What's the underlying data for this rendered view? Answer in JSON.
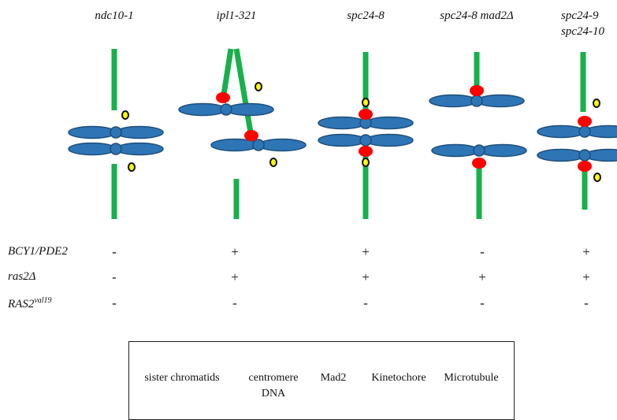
{
  "headers": {
    "col1": "ndc10-1",
    "col2": "ipl1-321",
    "col3": "spc24-8",
    "col4": "spc24-8 mad2Δ",
    "col5_line1": "spc24-9",
    "col5_line2": "spc24-10"
  },
  "rows": [
    {
      "label": "BCY1/PDE2",
      "label_sup": "",
      "values": [
        "-",
        "+",
        "+",
        "-",
        "+"
      ]
    },
    {
      "label": "ras2Δ",
      "label_sup": "",
      "values": [
        "-",
        "+",
        "+",
        "+",
        "+"
      ]
    },
    {
      "label": "RAS2",
      "label_sup": "val19",
      "values": [
        "-",
        "-",
        "-",
        "-",
        "-"
      ]
    }
  ],
  "legend": {
    "sister_chromatids": "sister chromatids",
    "centromere_line1": "centromere",
    "centromere_line2": "DNA",
    "mad2": "Mad2",
    "kinetochore": "Kinetochore",
    "microtubule": "Microtubule"
  },
  "colors": {
    "chromatid": "#2e75b6",
    "chromatid_stroke": "#1f4e79",
    "mad2_fill": "#ffff00",
    "kinetochore": "#ff0000",
    "microtubule": "#17b04a"
  }
}
